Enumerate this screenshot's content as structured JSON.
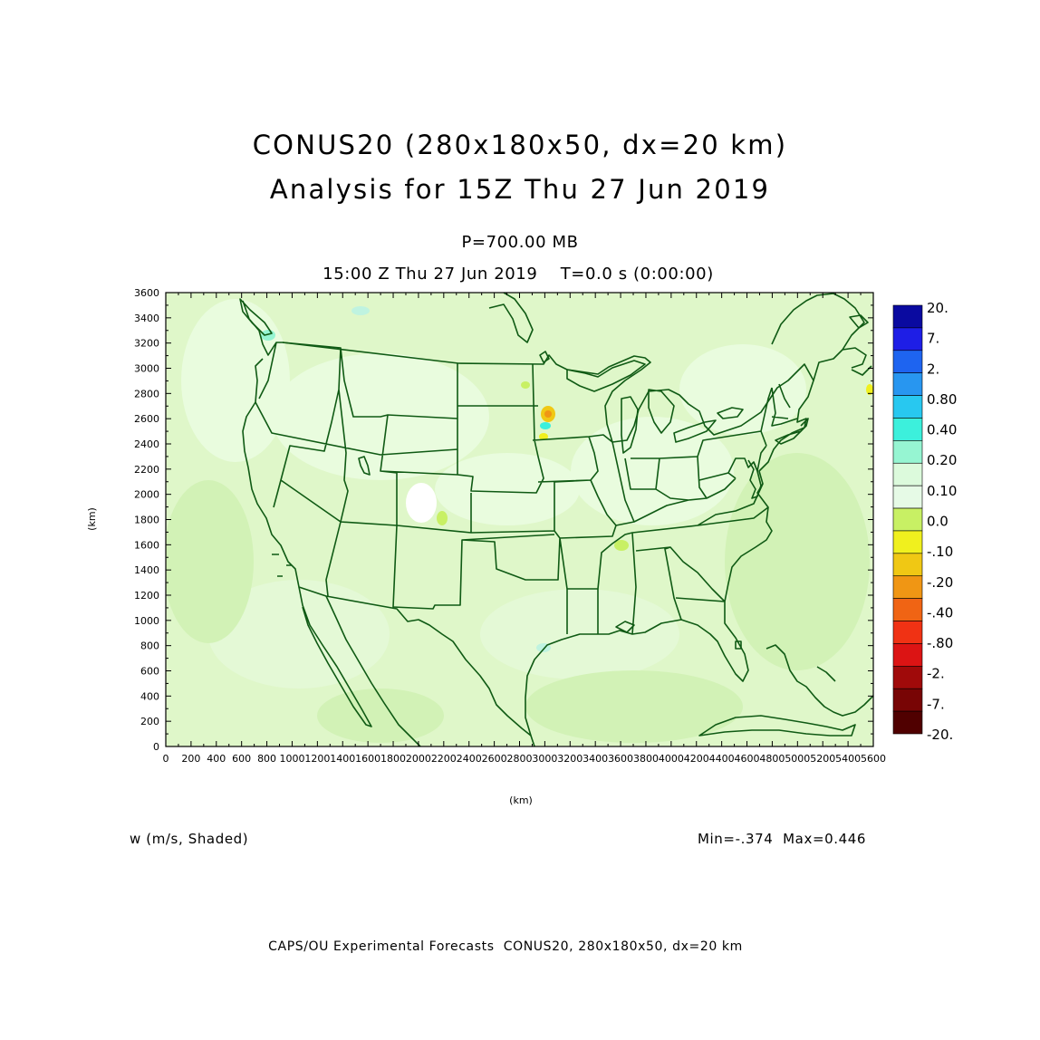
{
  "header": {
    "title_line1": "CONUS20 (280x180x50, dx=20 km)",
    "title_line2": "Analysis for 15Z Thu 27 Jun 2019",
    "level": "P=700.00 MB",
    "valid_time": "15:00 Z Thu 27 Jun 2019    T=0.0 s (0:00:00)"
  },
  "axes": {
    "xlabel": "(km)",
    "ylabel": "(km)",
    "x_ticks": [
      "0",
      "200",
      "400",
      "600",
      "800",
      "1000",
      "1200",
      "1400",
      "1600",
      "1800",
      "2000",
      "2200",
      "2400",
      "2600",
      "2800",
      "3000",
      "3200",
      "3400",
      "3600",
      "3800",
      "4000",
      "4200",
      "4400",
      "4600",
      "4800",
      "5000",
      "5200",
      "5400",
      "5600"
    ],
    "y_ticks": [
      "0",
      "200",
      "400",
      "600",
      "800",
      "1000",
      "1200",
      "1400",
      "1600",
      "1800",
      "2000",
      "2200",
      "2400",
      "2600",
      "2800",
      "3000",
      "3200",
      "3400",
      "3600"
    ],
    "x_range": [
      0,
      5600
    ],
    "y_range": [
      0,
      3600
    ]
  },
  "colorbar": {
    "labels": [
      "20.",
      "7.",
      "2.",
      "0.80",
      "0.40",
      "0.20",
      "0.10",
      "0.0",
      "-.10",
      "-.20",
      "-.40",
      "-.80",
      "-2.",
      "-7.",
      "-20."
    ],
    "colors": [
      "#0a0aa0",
      "#1e1ee6",
      "#1e64f0",
      "#2896f0",
      "#28c8f0",
      "#3cf0dc",
      "#96f5d2",
      "#e6fae6",
      "#dcf5c8",
      "#c8f064",
      "#f0f01e",
      "#f0c814",
      "#f09614",
      "#f06414",
      "#f03214",
      "#dc1414",
      "#a00a0a",
      "#780505",
      "#500000"
    ]
  },
  "colorbar_band_colors": [
    "#0a0aa0",
    "#1e1ee6",
    "#1e64f0",
    "#2896f0",
    "#28c8f0",
    "#3cf0dc",
    "#96f5d2",
    "#dcfadc",
    "#e6fae6",
    "#c8f064",
    "#f0f01e",
    "#f0c814",
    "#f09614",
    "#f06414",
    "#f03214",
    "#dc1414",
    "#a00a0a",
    "#780505",
    "#500000"
  ],
  "colors": {
    "map_fill_light": "#e8fcd8",
    "map_fill_mid": "#d6f5bf",
    "border_line": "#0f5a14"
  },
  "field_label": "w (m/s, Shaded)",
  "minmax": "Min=-.374  Max=0.446",
  "footer": "CAPS/OU Experimental Forecasts  CONUS20, 280x180x50, dx=20 km"
}
